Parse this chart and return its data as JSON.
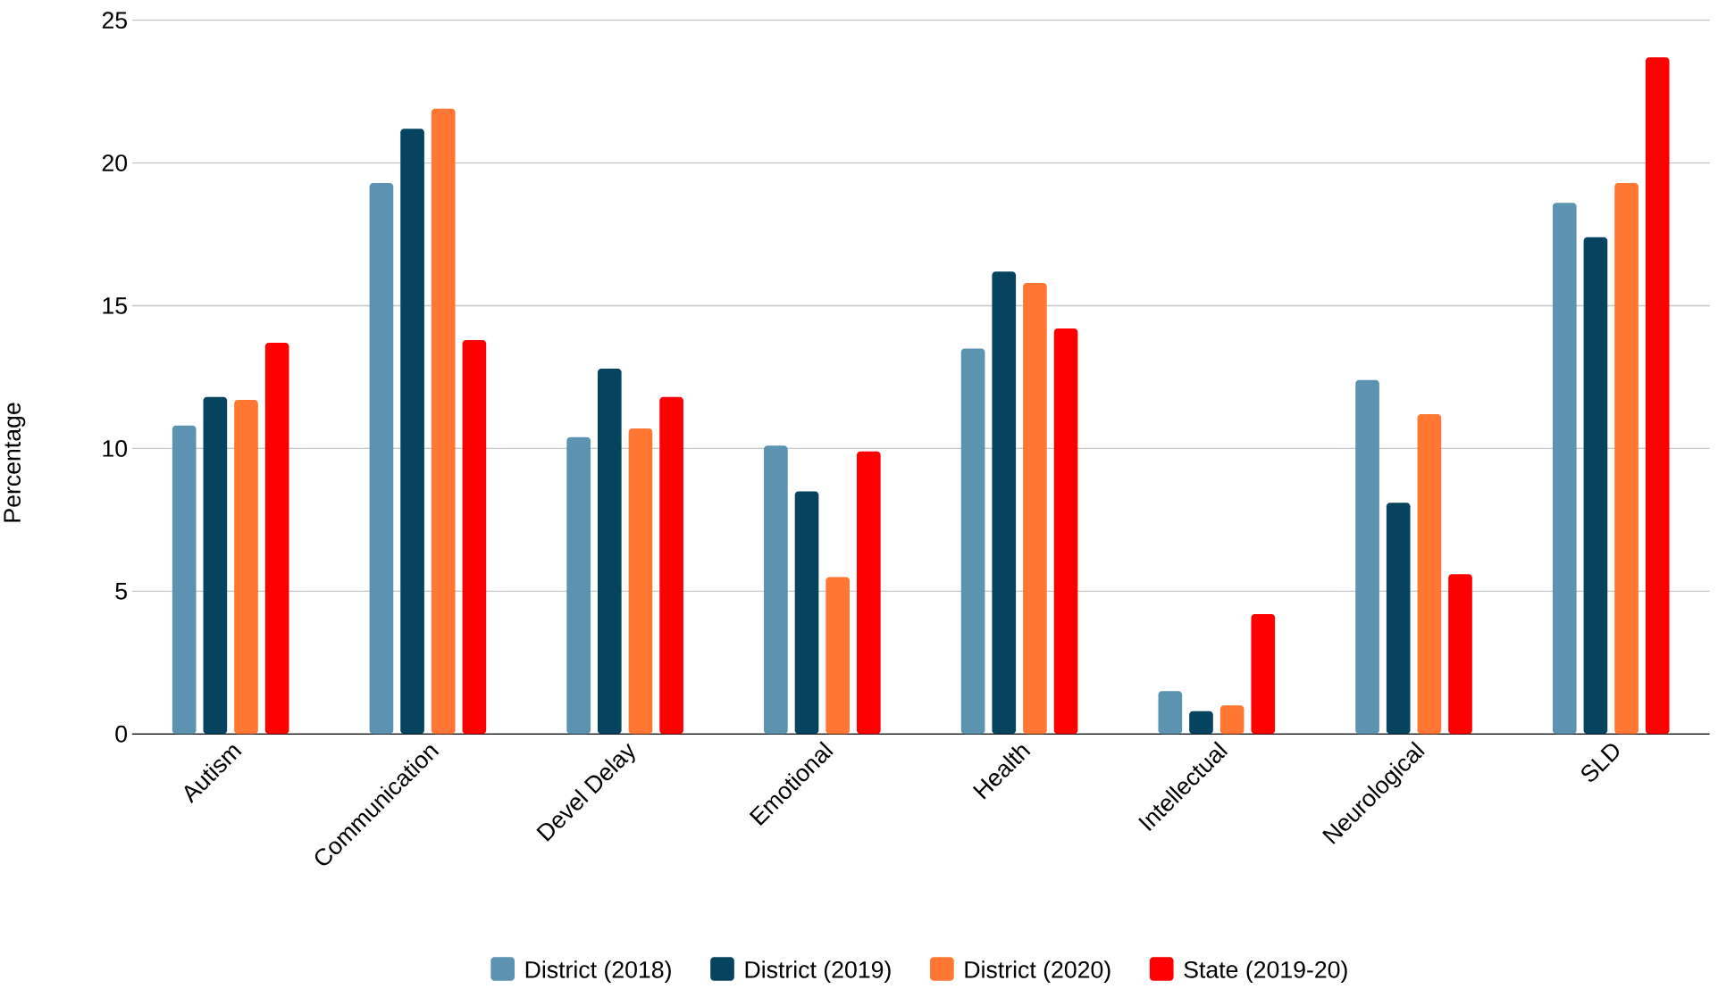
{
  "chart_data": {
    "type": "bar",
    "ylabel": "Percentage",
    "categories": [
      "Autism",
      "Communication",
      "Devel Delay",
      "Emotional",
      "Health",
      "Intellectual",
      "Neurological",
      "SLD"
    ],
    "series": [
      {
        "name": "District (2018)",
        "color": "#5b93b0",
        "values": [
          10.8,
          19.3,
          10.4,
          10.1,
          13.5,
          1.5,
          12.4,
          18.6
        ]
      },
      {
        "name": "District (2019)",
        "color": "#06435f",
        "values": [
          11.8,
          21.2,
          12.8,
          8.5,
          16.2,
          0.8,
          8.1,
          17.4
        ]
      },
      {
        "name": "District (2020)",
        "color": "#ff7733",
        "values": [
          11.7,
          21.9,
          10.7,
          5.5,
          15.8,
          1.0,
          11.2,
          19.3
        ]
      },
      {
        "name": "State (2019-20)",
        "color": "#ff0000",
        "values": [
          13.7,
          13.8,
          11.8,
          9.9,
          14.2,
          4.2,
          5.6,
          23.7
        ]
      }
    ],
    "ylim": [
      0,
      25
    ],
    "yticks": [
      0,
      5,
      10,
      15,
      20,
      25
    ],
    "grid": "y",
    "legend": "bottom"
  }
}
